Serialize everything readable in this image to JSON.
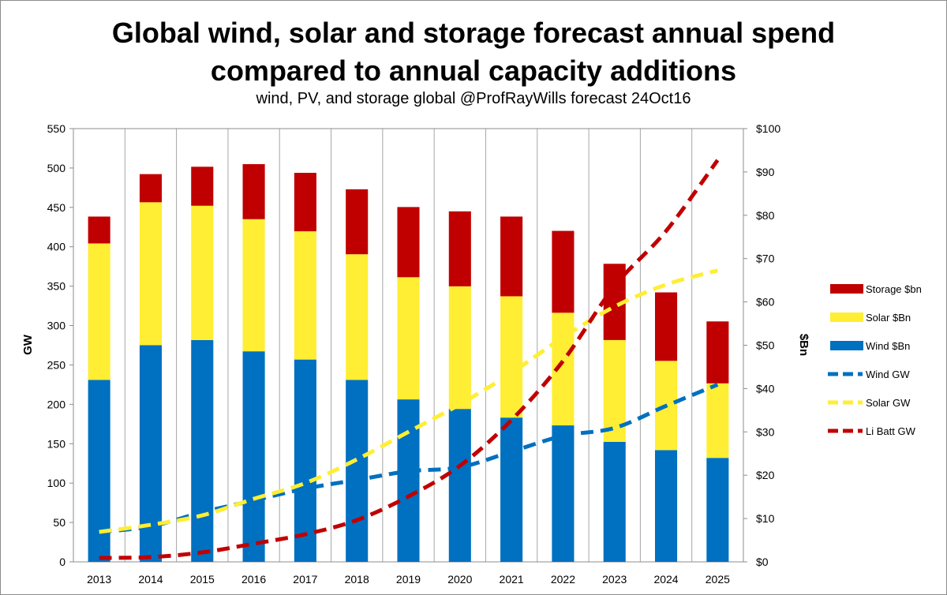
{
  "chart_data": {
    "type": "bar",
    "title_lines": [
      "Global wind, solar and storage forecast annual spend",
      "compared to annual capacity additions"
    ],
    "subtitle": "wind, PV, and storage global @ProfRayWills forecast 24Oct16",
    "categories": [
      "2013",
      "2014",
      "2015",
      "2016",
      "2017",
      "2018",
      "2019",
      "2020",
      "2021",
      "2022",
      "2023",
      "2024",
      "2025"
    ],
    "ylabel": "GW",
    "y2label": "$Bn",
    "ylim": [
      0,
      550
    ],
    "y2lim": [
      0,
      100
    ],
    "yticks": [
      0,
      50,
      100,
      150,
      200,
      250,
      300,
      350,
      400,
      450,
      500,
      550
    ],
    "y2ticks": [
      "$0",
      "$10",
      "$20",
      "$30",
      "$40",
      "$50",
      "$60",
      "$70",
      "$80",
      "$90",
      "$100"
    ],
    "grid": "vertical",
    "legend_position": "right",
    "bar_series": [
      {
        "name": "Wind $Bn",
        "axis": "right",
        "color": "#0070c0",
        "values": [
          42,
          50,
          51.2,
          48.6,
          46.7,
          42,
          37.5,
          35.3,
          33.3,
          31.5,
          27.7,
          25.8,
          24
        ]
      },
      {
        "name": "Solar $Bn",
        "axis": "right",
        "color": "#ffee33",
        "values": [
          31.5,
          33,
          31,
          30.5,
          29.6,
          29,
          28.2,
          28.3,
          28,
          26,
          23.5,
          20.6,
          17.2
        ]
      },
      {
        "name": "Storage $bn",
        "axis": "right",
        "color": "#c00000",
        "values": [
          6.2,
          6.5,
          9,
          12.7,
          13.5,
          15,
          16.2,
          17.3,
          18.4,
          18.9,
          17.6,
          15.8,
          14.3
        ]
      }
    ],
    "line_series": [
      {
        "name": "Wind GW",
        "axis": "left",
        "color": "#0070c0",
        "values": [
          38,
          45,
          63,
          78,
          93,
          104,
          115,
          120,
          140,
          160,
          170,
          198,
          225
        ]
      },
      {
        "name": "Solar GW",
        "axis": "left",
        "color": "#ffee33",
        "values": [
          38,
          47,
          59,
          80,
          100,
          130,
          165,
          200,
          240,
          285,
          324,
          352,
          370
        ]
      },
      {
        "name": "Li Batt GW",
        "axis": "left",
        "color": "#c00000",
        "values": [
          5,
          6,
          12,
          23,
          35,
          53,
          83,
          122,
          180,
          255,
          350,
          420,
          510
        ]
      }
    ],
    "legend_order": [
      "Storage $bn",
      "Solar $Bn",
      "Wind $Bn",
      "Wind GW",
      "Solar GW",
      "Li Batt GW"
    ]
  }
}
